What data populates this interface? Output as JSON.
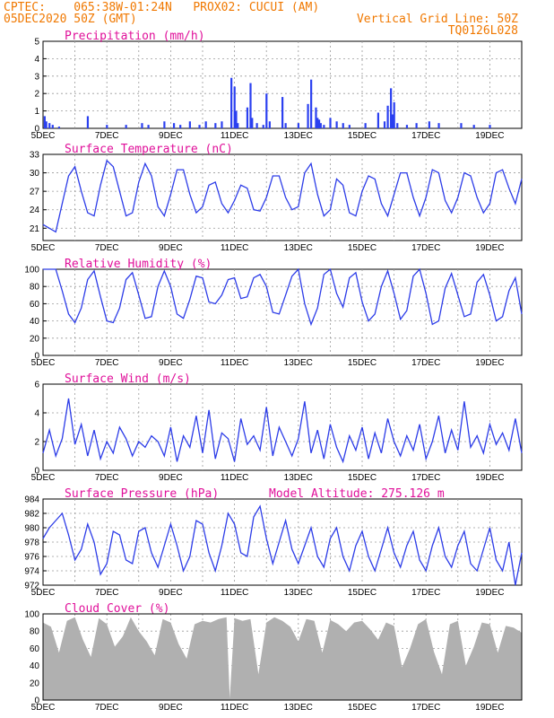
{
  "header": {
    "line1_left": "CPTEC:    065:38W-01:24N   PROX02: CUCUI (AM)",
    "line2_left": "05DEC2020 50Z (GMT)",
    "line2_right": "Vertical Grid Line: 50Z",
    "line3_right": "TQ0126L028"
  },
  "colors": {
    "header": "#f07800",
    "title": "#e0109a",
    "series": "#2c3ce8",
    "bars": "#2b40f0",
    "cloud": "#b0b0b0"
  },
  "x_labels": [
    "5DEC",
    "7DEC",
    "9DEC",
    "11DEC",
    "13DEC",
    "15DEC",
    "17DEC",
    "19DEC"
  ],
  "chart_data": [
    {
      "type": "bar",
      "title": "Precipitation (mm/h)",
      "ylim": [
        0,
        5
      ],
      "yticks": [
        "0",
        "1",
        "2",
        "3",
        "4",
        "5"
      ],
      "x_range_days": [
        5,
        20
      ],
      "x": [
        5.05,
        5.1,
        5.2,
        5.3,
        5.5,
        6.4,
        7.0,
        7.6,
        8.1,
        8.3,
        8.8,
        9.1,
        9.3,
        9.6,
        9.9,
        10.1,
        10.4,
        10.6,
        10.9,
        11.0,
        11.05,
        11.1,
        11.4,
        11.5,
        11.55,
        11.7,
        11.9,
        12.0,
        12.1,
        12.5,
        12.6,
        13.0,
        13.3,
        13.4,
        13.55,
        13.6,
        13.65,
        13.7,
        13.8,
        14.0,
        14.2,
        14.4,
        14.6,
        15.1,
        15.5,
        15.7,
        15.8,
        15.9,
        15.95,
        16.0,
        16.1,
        16.4,
        16.7,
        17.1,
        17.4,
        18.1,
        18.5,
        19.0
      ],
      "values": [
        0.7,
        0.4,
        0.3,
        0.2,
        0.1,
        0.7,
        0.2,
        0.2,
        0.3,
        0.2,
        0.4,
        0.3,
        0.2,
        0.4,
        0.2,
        0.4,
        0.3,
        0.4,
        2.9,
        2.4,
        1.0,
        0.3,
        1.2,
        2.6,
        0.6,
        0.3,
        0.2,
        2.0,
        0.4,
        1.8,
        0.3,
        0.3,
        1.4,
        2.8,
        1.2,
        0.6,
        0.5,
        0.3,
        0.2,
        0.6,
        0.4,
        0.3,
        0.2,
        0.3,
        0.9,
        0.4,
        1.3,
        2.3,
        0.8,
        1.5,
        0.3,
        0.2,
        0.3,
        0.4,
        0.3,
        0.3,
        0.2,
        0.2
      ]
    },
    {
      "type": "line",
      "title": "Surface Temperature (nC)",
      "ylim": [
        19,
        33
      ],
      "yticks": [
        "21",
        "24",
        "27",
        "30",
        "33"
      ],
      "x": [
        5.0,
        5.2,
        5.4,
        5.6,
        5.8,
        6.0,
        6.2,
        6.4,
        6.6,
        6.8,
        7.0,
        7.2,
        7.4,
        7.6,
        7.8,
        8.0,
        8.2,
        8.4,
        8.6,
        8.8,
        9.0,
        9.2,
        9.4,
        9.6,
        9.8,
        10.0,
        10.2,
        10.4,
        10.6,
        10.8,
        11.0,
        11.2,
        11.4,
        11.6,
        11.8,
        12.0,
        12.2,
        12.4,
        12.6,
        12.8,
        13.0,
        13.2,
        13.4,
        13.6,
        13.8,
        14.0,
        14.2,
        14.4,
        14.6,
        14.8,
        15.0,
        15.2,
        15.4,
        15.6,
        15.8,
        16.0,
        16.2,
        16.4,
        16.6,
        16.8,
        17.0,
        17.2,
        17.4,
        17.6,
        17.8,
        18.0,
        18.2,
        18.4,
        18.6,
        18.8,
        19.0,
        19.2,
        19.4,
        19.6,
        19.8,
        20.0
      ],
      "values": [
        21.6,
        21.0,
        20.4,
        25.0,
        29.5,
        31.0,
        27.0,
        23.5,
        23.0,
        28.0,
        32.0,
        31.0,
        27.0,
        23.0,
        23.5,
        28.5,
        31.5,
        29.5,
        24.5,
        23.0,
        26.5,
        30.5,
        30.5,
        26.5,
        23.5,
        24.5,
        28.0,
        28.5,
        25.0,
        23.5,
        25.5,
        28.0,
        27.5,
        24.0,
        23.8,
        26.0,
        29.5,
        29.5,
        26.0,
        24.0,
        24.5,
        30.0,
        31.5,
        26.5,
        23.0,
        24.0,
        29.0,
        28.0,
        23.5,
        23.0,
        27.0,
        29.5,
        29.0,
        25.0,
        23.0,
        26.5,
        30.0,
        30.0,
        26.0,
        23.0,
        26.0,
        30.5,
        30.0,
        25.5,
        23.5,
        26.0,
        30.0,
        29.5,
        26.0,
        23.5,
        25.0,
        30.0,
        30.5,
        27.5,
        25.0,
        29.0
      ]
    },
    {
      "type": "line",
      "title": "Relative Humidity (%)",
      "ylim": [
        0,
        100
      ],
      "yticks": [
        "0",
        "20",
        "40",
        "60",
        "80",
        "100"
      ],
      "x": [
        5.0,
        5.2,
        5.4,
        5.6,
        5.8,
        6.0,
        6.2,
        6.4,
        6.6,
        6.8,
        7.0,
        7.2,
        7.4,
        7.6,
        7.8,
        8.0,
        8.2,
        8.4,
        8.6,
        8.8,
        9.0,
        9.2,
        9.4,
        9.6,
        9.8,
        10.0,
        10.2,
        10.4,
        10.6,
        10.8,
        11.0,
        11.2,
        11.4,
        11.6,
        11.8,
        12.0,
        12.2,
        12.4,
        12.6,
        12.8,
        13.0,
        13.2,
        13.4,
        13.6,
        13.8,
        14.0,
        14.2,
        14.4,
        14.6,
        14.8,
        15.0,
        15.2,
        15.4,
        15.6,
        15.8,
        16.0,
        16.2,
        16.4,
        16.6,
        16.8,
        17.0,
        17.2,
        17.4,
        17.6,
        17.8,
        18.0,
        18.2,
        18.4,
        18.6,
        18.8,
        19.0,
        19.2,
        19.4,
        19.6,
        19.8,
        20.0
      ],
      "values": [
        100,
        100,
        100,
        75,
        48,
        38,
        55,
        88,
        98,
        68,
        40,
        38,
        55,
        88,
        96,
        70,
        43,
        45,
        80,
        98,
        80,
        48,
        43,
        65,
        92,
        90,
        62,
        60,
        70,
        88,
        90,
        66,
        68,
        90,
        94,
        80,
        50,
        48,
        70,
        92,
        100,
        60,
        36,
        55,
        94,
        100,
        72,
        56,
        90,
        96,
        62,
        40,
        48,
        80,
        98,
        72,
        42,
        52,
        92,
        100,
        72,
        36,
        40,
        78,
        95,
        70,
        45,
        48,
        85,
        94,
        70,
        40,
        45,
        75,
        90,
        48
      ]
    },
    {
      "type": "line",
      "title": "Surface Wind (m/s)",
      "ylim": [
        0,
        6
      ],
      "yticks": [
        "0",
        "2",
        "4",
        "6"
      ],
      "x": [
        5.0,
        5.2,
        5.4,
        5.6,
        5.8,
        6.0,
        6.2,
        6.4,
        6.6,
        6.8,
        7.0,
        7.2,
        7.4,
        7.6,
        7.8,
        8.0,
        8.2,
        8.4,
        8.6,
        8.8,
        9.0,
        9.2,
        9.4,
        9.6,
        9.8,
        10.0,
        10.2,
        10.4,
        10.6,
        10.8,
        11.0,
        11.2,
        11.4,
        11.6,
        11.8,
        12.0,
        12.2,
        12.4,
        12.6,
        12.8,
        13.0,
        13.2,
        13.4,
        13.6,
        13.8,
        14.0,
        14.2,
        14.4,
        14.6,
        14.8,
        15.0,
        15.2,
        15.4,
        15.6,
        15.8,
        16.0,
        16.2,
        16.4,
        16.6,
        16.8,
        17.0,
        17.2,
        17.4,
        17.6,
        17.8,
        18.0,
        18.2,
        18.4,
        18.6,
        18.8,
        19.0,
        19.2,
        19.4,
        19.6,
        19.8,
        20.0
      ],
      "values": [
        1.2,
        2.8,
        1.0,
        2.2,
        5.0,
        1.8,
        3.2,
        1.0,
        2.8,
        0.8,
        2.0,
        1.2,
        3.0,
        2.2,
        1.0,
        2.0,
        1.6,
        2.4,
        2.0,
        1.0,
        3.0,
        0.6,
        2.4,
        1.6,
        3.8,
        1.2,
        4.2,
        0.8,
        2.6,
        2.2,
        0.6,
        3.6,
        1.8,
        2.4,
        1.4,
        4.4,
        1.0,
        3.0,
        2.0,
        1.0,
        2.2,
        4.8,
        1.2,
        2.8,
        0.8,
        3.2,
        1.6,
        0.6,
        2.4,
        1.4,
        3.0,
        0.8,
        2.6,
        1.2,
        3.6,
        2.0,
        1.0,
        2.4,
        1.4,
        3.2,
        0.8,
        2.0,
        3.8,
        1.2,
        2.8,
        1.4,
        4.8,
        1.6,
        2.4,
        1.2,
        3.2,
        1.8,
        2.6,
        1.4,
        3.6,
        1.2
      ]
    },
    {
      "type": "line",
      "title": "Surface Pressure (hPa)",
      "annotation": "Model Altitude: 275.126 m",
      "ylim": [
        972,
        984
      ],
      "yticks": [
        "972",
        "974",
        "976",
        "978",
        "980",
        "982",
        "984"
      ],
      "x": [
        5.0,
        5.2,
        5.4,
        5.6,
        5.8,
        6.0,
        6.2,
        6.4,
        6.6,
        6.8,
        7.0,
        7.2,
        7.4,
        7.6,
        7.8,
        8.0,
        8.2,
        8.4,
        8.6,
        8.8,
        9.0,
        9.2,
        9.4,
        9.6,
        9.8,
        10.0,
        10.2,
        10.4,
        10.6,
        10.8,
        11.0,
        11.2,
        11.4,
        11.6,
        11.8,
        12.0,
        12.2,
        12.4,
        12.6,
        12.8,
        13.0,
        13.2,
        13.4,
        13.6,
        13.8,
        14.0,
        14.2,
        14.4,
        14.6,
        14.8,
        15.0,
        15.2,
        15.4,
        15.6,
        15.8,
        16.0,
        16.2,
        16.4,
        16.6,
        16.8,
        17.0,
        17.2,
        17.4,
        17.6,
        17.8,
        18.0,
        18.2,
        18.4,
        18.6,
        18.8,
        19.0,
        19.2,
        19.4,
        19.6,
        19.8,
        20.0
      ],
      "values": [
        978.5,
        980.0,
        981.0,
        982.0,
        979.0,
        975.5,
        977.0,
        980.5,
        978.0,
        973.5,
        975.0,
        979.5,
        979.0,
        975.5,
        975.0,
        979.5,
        980.0,
        976.5,
        974.5,
        977.5,
        980.5,
        977.5,
        974.0,
        976.0,
        981.0,
        980.5,
        976.5,
        974.0,
        977.5,
        982.0,
        980.5,
        976.5,
        976.0,
        981.5,
        983.0,
        978.5,
        975.0,
        978.0,
        981.0,
        977.0,
        975.0,
        977.5,
        980.0,
        976.0,
        974.5,
        978.5,
        980.0,
        976.0,
        974.0,
        977.5,
        979.5,
        976.0,
        974.0,
        977.0,
        980.0,
        976.5,
        974.5,
        977.5,
        979.5,
        975.5,
        974.0,
        977.5,
        980.0,
        976.0,
        974.5,
        977.5,
        979.5,
        975.0,
        974.0,
        977.0,
        980.0,
        975.5,
        974.0,
        978.0,
        972.0,
        976.5
      ]
    },
    {
      "type": "area",
      "title": "Cloud Cover (%)",
      "ylim": [
        0,
        100
      ],
      "yticks": [
        "0",
        "20",
        "40",
        "60",
        "80",
        "100"
      ],
      "x": [
        5.0,
        5.25,
        5.5,
        5.75,
        6.0,
        6.25,
        6.5,
        6.75,
        7.0,
        7.25,
        7.5,
        7.75,
        8.0,
        8.25,
        8.5,
        8.75,
        9.0,
        9.25,
        9.5,
        9.75,
        10.0,
        10.25,
        10.5,
        10.75,
        10.85,
        11.0,
        11.25,
        11.5,
        11.75,
        12.0,
        12.25,
        12.5,
        12.75,
        13.0,
        13.25,
        13.5,
        13.75,
        14.0,
        14.25,
        14.5,
        14.75,
        15.0,
        15.25,
        15.5,
        15.75,
        16.0,
        16.25,
        16.5,
        16.75,
        17.0,
        17.25,
        17.5,
        17.75,
        18.0,
        18.25,
        18.5,
        18.75,
        19.0,
        19.25,
        19.5,
        19.75,
        20.0
      ],
      "values": [
        90,
        85,
        55,
        92,
        96,
        70,
        50,
        95,
        88,
        62,
        74,
        96,
        80,
        68,
        52,
        94,
        90,
        65,
        48,
        88,
        92,
        90,
        94,
        96,
        2,
        95,
        92,
        94,
        30,
        90,
        96,
        92,
        85,
        68,
        94,
        92,
        55,
        93,
        88,
        80,
        90,
        92,
        82,
        70,
        90,
        86,
        38,
        60,
        88,
        94,
        56,
        30,
        88,
        92,
        40,
        62,
        90,
        88,
        55,
        86,
        84,
        78
      ]
    }
  ]
}
